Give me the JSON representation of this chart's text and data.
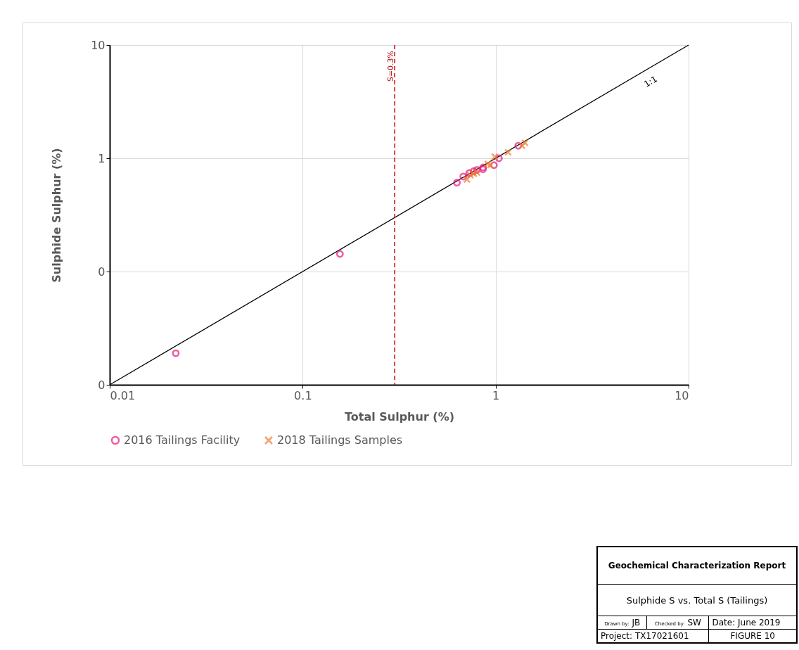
{
  "chart_data": {
    "type": "scatter",
    "xlabel": "Total Sulphur (%)",
    "ylabel": "Sulphide Sulphur (%)",
    "log": "xy",
    "grid": true,
    "legend": "bottom",
    "xlim": [
      0.01,
      10
    ],
    "ylim": [
      0.01,
      10
    ],
    "xticks": [
      0.01,
      0.1,
      1,
      10
    ],
    "yticks": [
      {
        "value": 0.01,
        "label": "0"
      },
      {
        "value": 0.1,
        "label": "0"
      },
      1,
      10
    ],
    "series": [
      {
        "name": "2016 Tailings Facility",
        "color": "#e6197e",
        "marker": "circle",
        "x": [
          0.022,
          0.156,
          0.63,
          0.68,
          0.73,
          0.77,
          0.8,
          0.86,
          0.86,
          0.98,
          1.04,
          1.31
        ],
        "values": [
          0.019,
          0.143,
          0.61,
          0.69,
          0.74,
          0.77,
          0.79,
          0.83,
          0.8,
          0.87,
          1.0,
          1.29
        ]
      },
      {
        "name": "2018 Tailings Samples",
        "color": "#ed7d31",
        "marker": "cross",
        "x": [
          0.71,
          0.74,
          0.77,
          0.8,
          0.91,
          0.94,
          0.99,
          1.16,
          1.37,
          1.42
        ],
        "values": [
          0.65,
          0.71,
          0.73,
          0.75,
          0.89,
          0.87,
          1.03,
          1.13,
          1.29,
          1.37
        ]
      },
      {
        "type": "line",
        "name": "1:1",
        "color": "#000000",
        "marker": "none",
        "x": [
          0.01,
          10
        ],
        "values": [
          0.01,
          10
        ]
      }
    ],
    "ref_lines": [
      {
        "axis": "x",
        "value": 0.3,
        "label": "S=0.3%",
        "color": "#c00000",
        "line_style": "dashed"
      }
    ],
    "annotations": [
      "Geochemical Characterization Report",
      "Sulphide S vs. Total S (Tailings)",
      "Drawn by:",
      "JB",
      "Checked by:",
      "SW",
      "Date: June 2019",
      "Project: TX17021601",
      "FIGURE 10"
    ]
  }
}
